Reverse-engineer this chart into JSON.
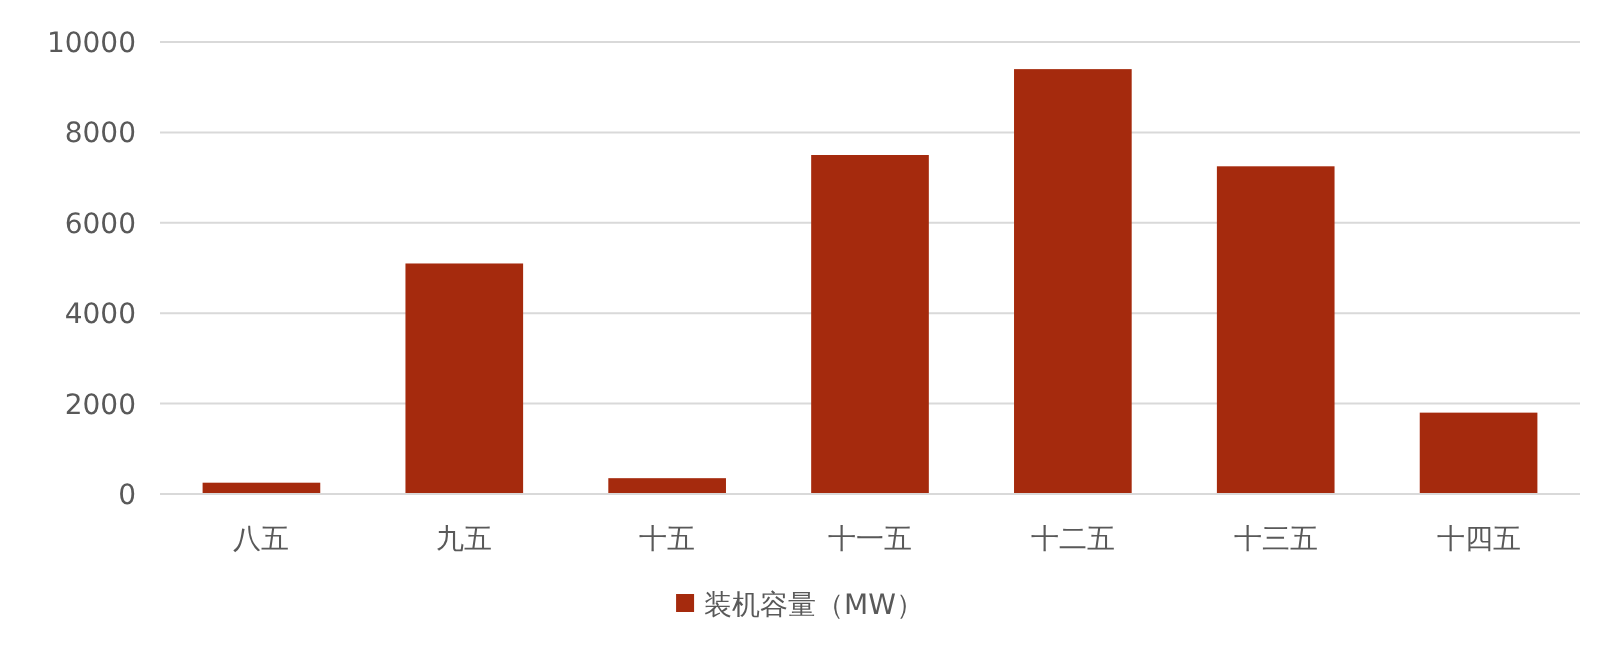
{
  "chart_data": {
    "type": "bar",
    "categories": [
      "八五",
      "九五",
      "十五",
      "十一五",
      "十二五",
      "十三五",
      "十四五"
    ],
    "series": [
      {
        "name": "装机容量（MW）",
        "color": "#a52a0d",
        "values": [
          250,
          5100,
          350,
          7500,
          9400,
          7250,
          1800
        ]
      }
    ],
    "ylim": [
      0,
      10000
    ],
    "yticks": [
      0,
      2000,
      4000,
      6000,
      8000,
      10000
    ],
    "grid": "y",
    "legend": "bottom"
  }
}
